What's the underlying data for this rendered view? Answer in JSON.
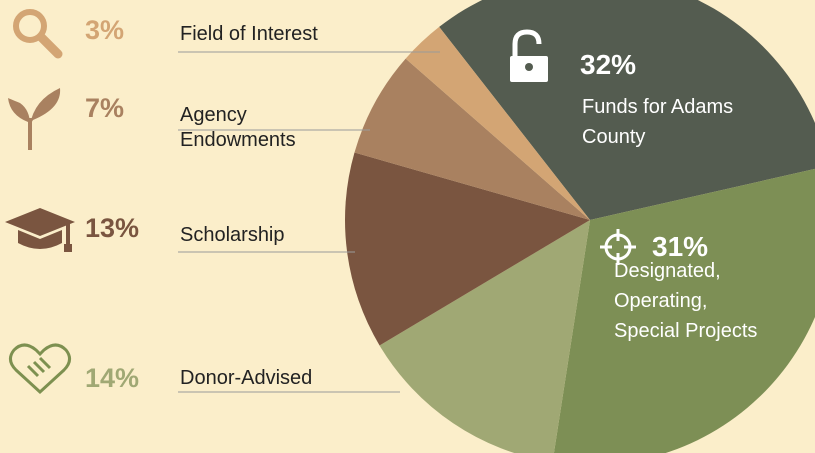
{
  "chart_data": {
    "type": "pie",
    "categories": [
      "Funds for Adams County",
      "Designated, Operating, Special Projects",
      "Donor-Advised",
      "Scholarship",
      "Agency Endowments",
      "Field of Interest"
    ],
    "values": [
      32,
      31,
      14,
      13,
      7,
      3
    ],
    "value_labels": [
      "32%",
      "31%",
      "14%",
      "13%",
      "7%",
      "3%"
    ],
    "colors": [
      "#545c50",
      "#7d8f55",
      "#a0a874",
      "#7a5540",
      "#a98160",
      "#d3a574"
    ]
  }
}
